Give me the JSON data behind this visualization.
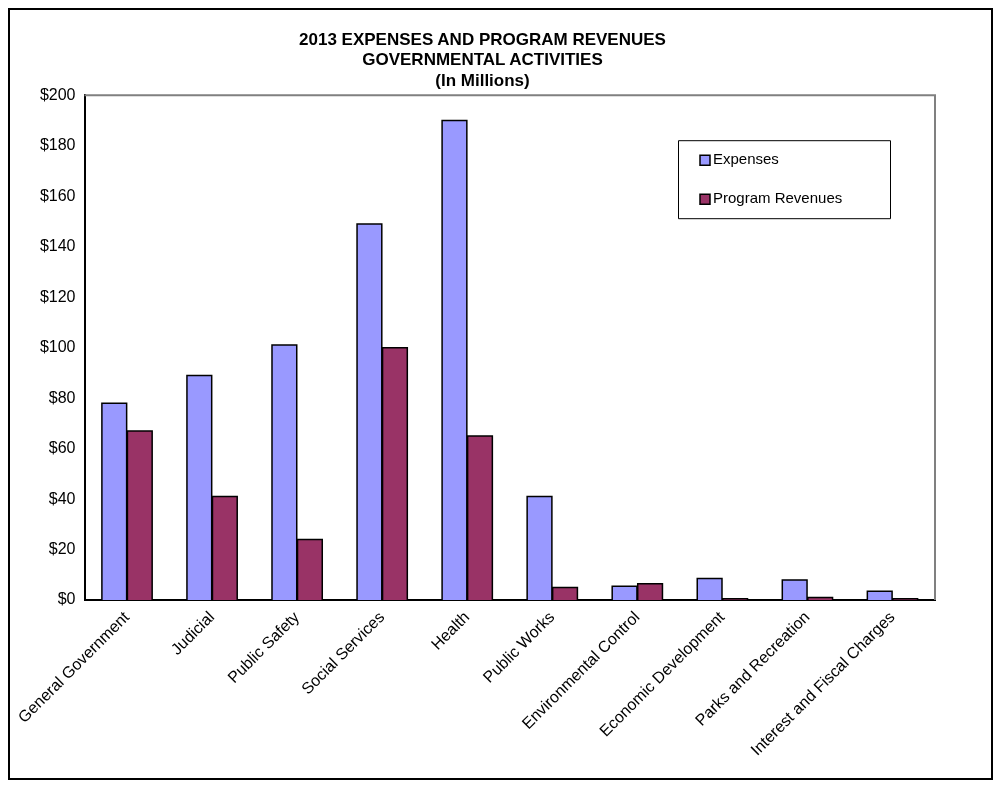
{
  "chart_data": {
    "type": "bar",
    "title": [
      "2013 EXPENSES AND PROGRAM REVENUES",
      "GOVERNMENTAL ACTIVITIES",
      "(In Millions)"
    ],
    "categories": [
      "General Government",
      "Judicial",
      "Public Safety",
      "Social Services",
      "Health",
      "Public Works",
      "Environmental Control",
      "Economic Development",
      "Parks and Recreation",
      "Interest and Fiscal Charges"
    ],
    "series": [
      {
        "name": "Expenses",
        "color": "#9999ff",
        "values": [
          78,
          89,
          101,
          149,
          190,
          41,
          5.5,
          8.5,
          8,
          3.5
        ]
      },
      {
        "name": "Program Revenues",
        "color": "#993366",
        "values": [
          67,
          41,
          24,
          100,
          65,
          5,
          6.5,
          0.5,
          1,
          0.5
        ]
      }
    ],
    "ylim": [
      0,
      200
    ],
    "yticks": [
      {
        "value": 0,
        "label": "$0"
      },
      {
        "value": 20,
        "label": "$20"
      },
      {
        "value": 40,
        "label": "$40"
      },
      {
        "value": 60,
        "label": "$60"
      },
      {
        "value": 80,
        "label": "$80"
      },
      {
        "value": 100,
        "label": "$100"
      },
      {
        "value": 120,
        "label": "$120"
      },
      {
        "value": 140,
        "label": "$140"
      },
      {
        "value": 160,
        "label": "$160"
      },
      {
        "value": 180,
        "label": "$180"
      },
      {
        "value": 200,
        "label": "$200"
      }
    ],
    "grid": false,
    "legend": "top right"
  }
}
